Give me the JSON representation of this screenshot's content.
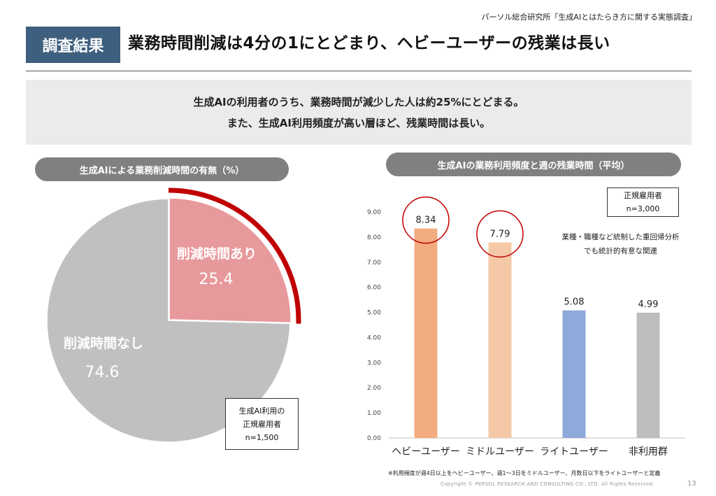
{
  "header": {
    "source": "パーソル総合研究所「生成AIとはたらき方に関する実態調査」",
    "badge": "調査結果",
    "title": "業務時間削減は4分の1にとどまり、ヘビーユーザーの残業は長い"
  },
  "summary": {
    "line1": "生成AIの利用者のうち、業務時間が減少した人は約25%にとどまる。",
    "line2": "また、生成AI利用頻度が高い層ほど、残業時間は長い。"
  },
  "left_panel": {
    "title": "生成AIによる業務削減時間の有無（%）",
    "note": [
      "生成AI利用の",
      "正規雇用者",
      "n=1,500"
    ]
  },
  "right_panel": {
    "title": "生成AIの業務利用頻度と週の残業時間（平均）",
    "note": [
      "正規雇用者",
      "n=3,000"
    ],
    "regression_note": [
      "業種・職種など統制した重回帰分析",
      "でも統計的有意な関連"
    ]
  },
  "chart_data": [
    {
      "type": "pie",
      "labels": [
        "削減時間あり",
        "削減時間なし"
      ],
      "values": [
        25.4,
        74.6
      ],
      "colors": [
        "#e8999c",
        "#c0c0c0"
      ],
      "highlight": "削減時間あり",
      "highlight_color": "#c00000"
    },
    {
      "type": "bar",
      "categories": [
        "ヘビーユーザー",
        "ミドルユーザー",
        "ライトユーザー",
        "非利用群"
      ],
      "values": [
        8.34,
        7.79,
        5.08,
        4.99
      ],
      "colors": [
        "#f2ac7f",
        "#f5c9a8",
        "#8eaadb",
        "#bdbdbd"
      ],
      "ylim": [
        0,
        9
      ],
      "yticks": [
        "0.00",
        "1.00",
        "2.00",
        "3.00",
        "4.00",
        "5.00",
        "6.00",
        "7.00",
        "8.00",
        "9.00"
      ],
      "circled": [
        "ヘビーユーザー",
        "ミドルユーザー"
      ],
      "circle_color": "#c00000"
    }
  ],
  "footer": {
    "footnote": "※利用頻度が週4日以上をヘビーユーザー、週1～3日をミドルユーザー、月数日以下をライトユーザーと定義",
    "copyright": "Copyright © PERSOL RESEARCH AND CONSULTING CO., LTD. All Rights Reserved.",
    "page": "13"
  }
}
